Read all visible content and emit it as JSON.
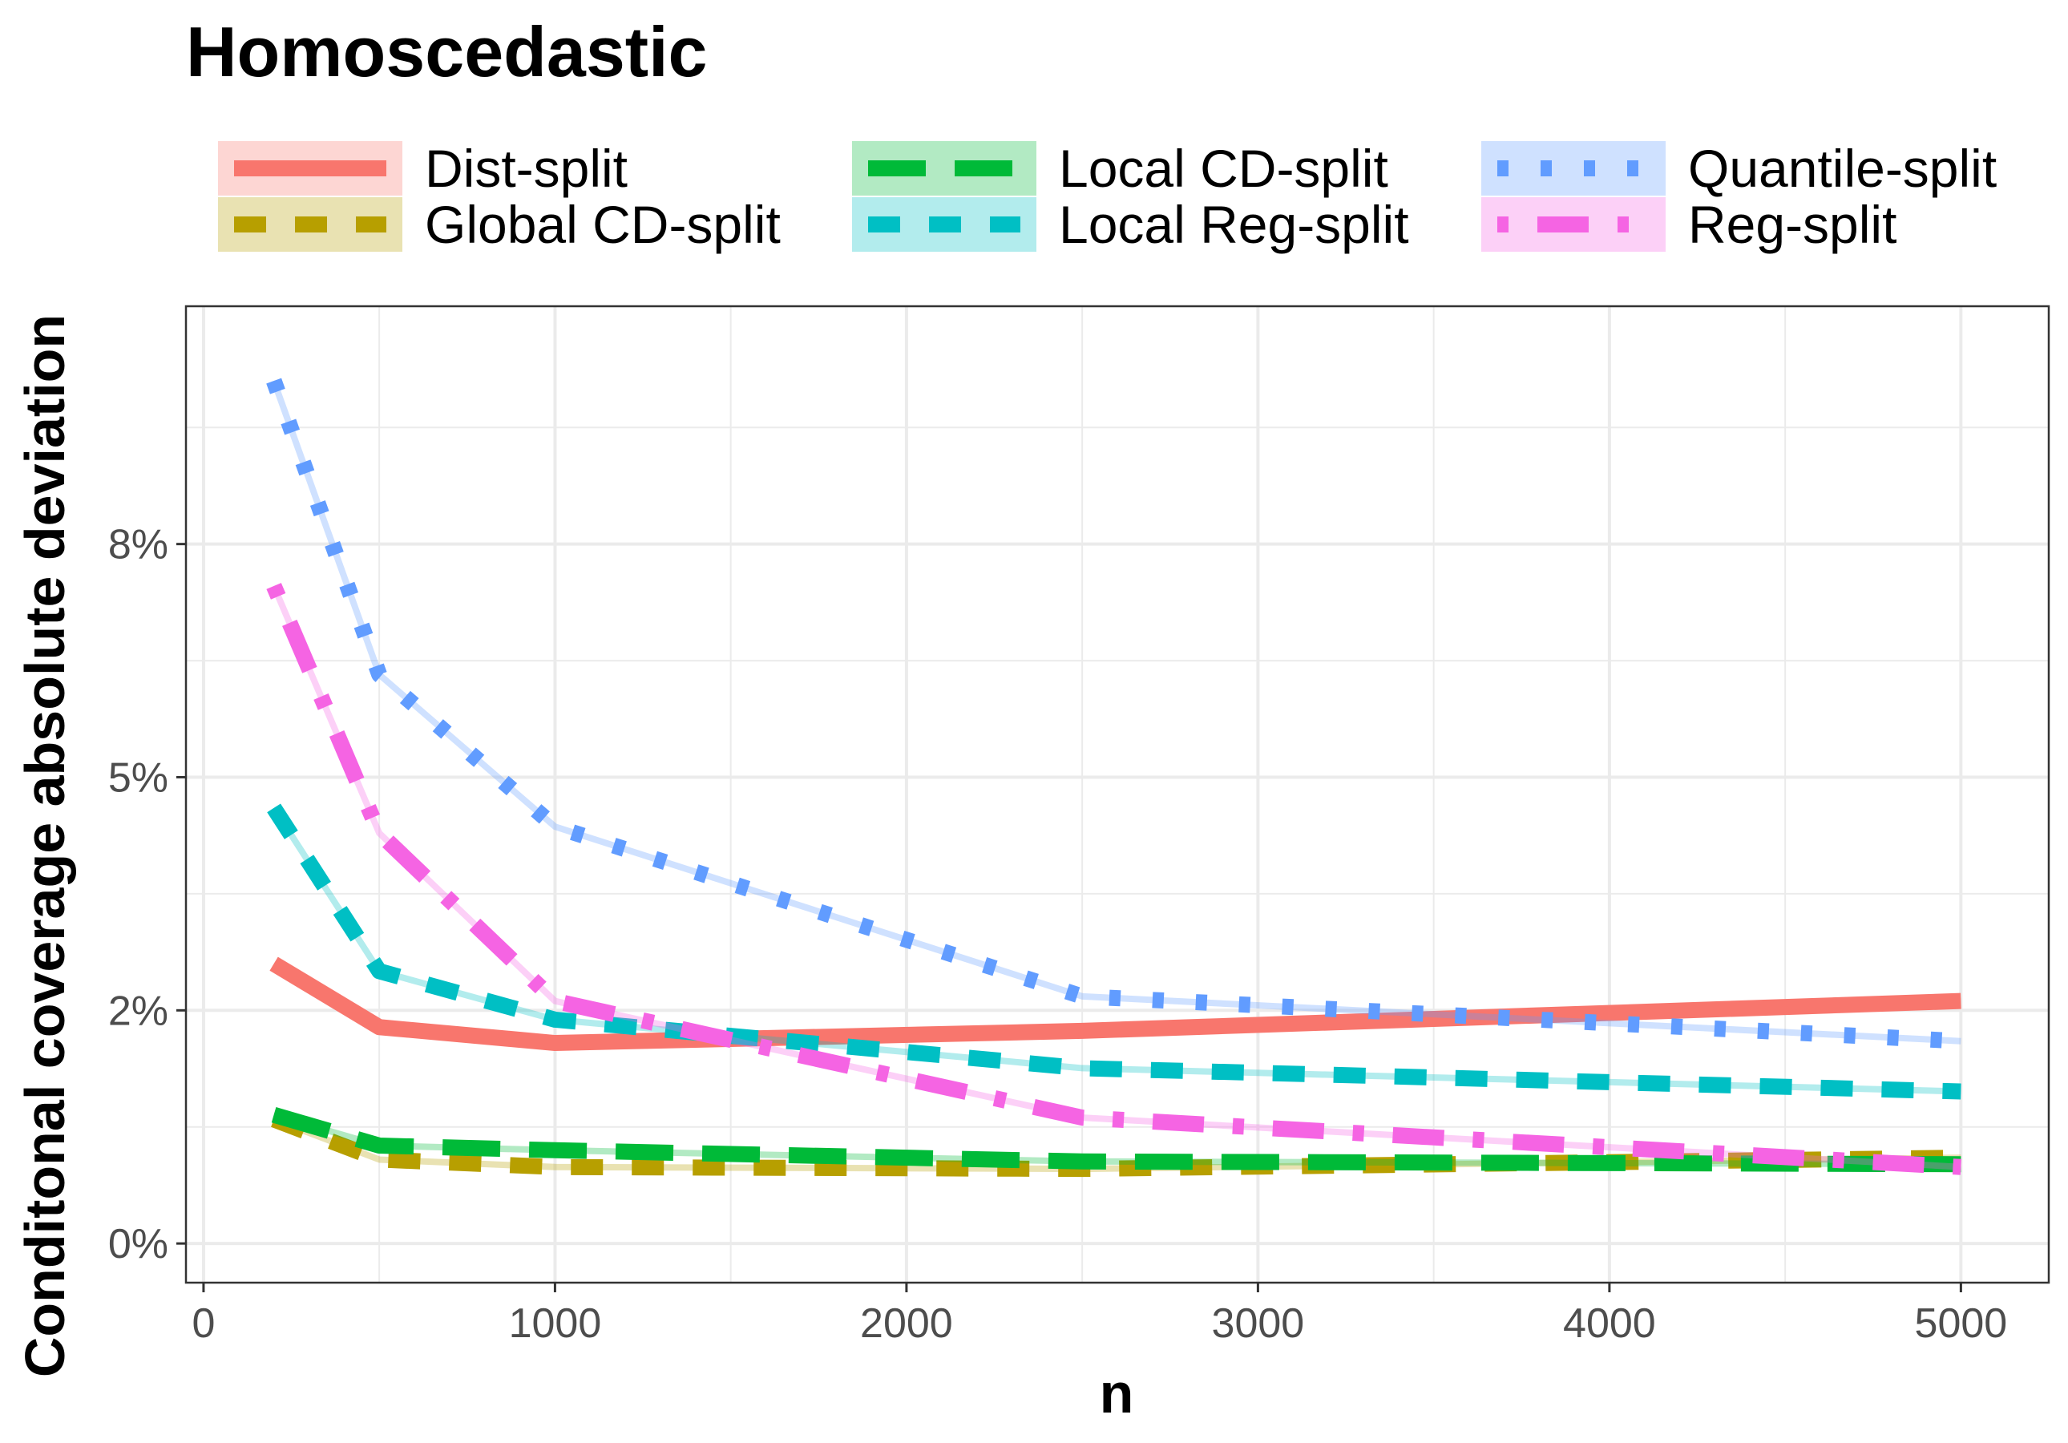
{
  "chart_data": {
    "type": "line",
    "title": "Homoscedastic",
    "xlabel": "n",
    "ylabel": "Conditonal coverage absolute deviation",
    "xlim": [
      -50,
      5250
    ],
    "ylim": [
      -0.0042,
      0.1005
    ],
    "x_ticks": [
      0,
      1000,
      2000,
      3000,
      4000,
      5000
    ],
    "x_tick_labels": [
      "0",
      "1000",
      "2000",
      "3000",
      "4000",
      "5000"
    ],
    "y_ticks": [
      0,
      0.025,
      0.05,
      0.075
    ],
    "y_tick_labels": [
      "0%",
      "2%",
      "5%",
      "8%"
    ],
    "grid": true,
    "legend_position": "top",
    "x": [
      200,
      500,
      1000,
      2500,
      5000
    ],
    "series": [
      {
        "name": "Dist-split",
        "color": "#F8766D",
        "dash": "solid",
        "values": [
          0.03,
          0.0232,
          0.0215,
          0.0228,
          0.026
        ]
      },
      {
        "name": "Global CD-split",
        "color": "#B79F00",
        "dash": "dashed",
        "values": [
          0.0133,
          0.009,
          0.0082,
          0.008,
          0.0092
        ]
      },
      {
        "name": "Local CD-split",
        "color": "#00BA38",
        "dash": "longdash",
        "values": [
          0.0138,
          0.0105,
          0.01,
          0.0088,
          0.0085
        ]
      },
      {
        "name": "Local Reg-split",
        "color": "#00BFC4",
        "dash": "dashed",
        "values": [
          0.0467,
          0.0292,
          0.024,
          0.0188,
          0.0163
        ]
      },
      {
        "name": "Quantile-split",
        "color": "#619CFF",
        "dash": "dotted",
        "values": [
          0.0925,
          0.061,
          0.0447,
          0.0265,
          0.0217
        ]
      },
      {
        "name": "Reg-split",
        "color": "#F564E3",
        "dash": "dotdash",
        "values": [
          0.0705,
          0.044,
          0.026,
          0.0135,
          0.0082
        ]
      }
    ]
  }
}
